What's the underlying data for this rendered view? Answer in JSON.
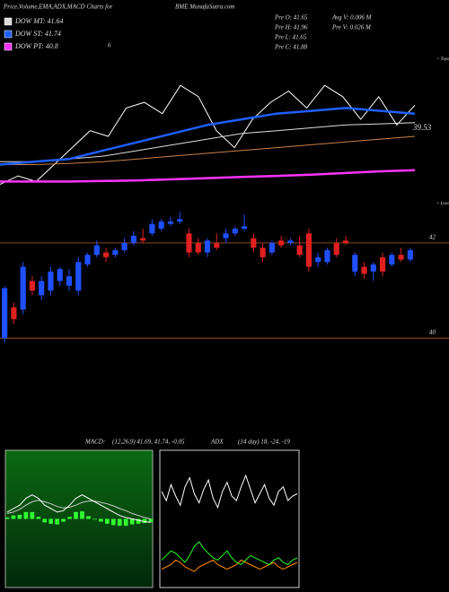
{
  "header": {
    "title": "Price,Volume,EMA,ADX,MACD Charts for",
    "site": "BME MunafaSutra.com",
    "note": "6",
    "info": [
      "Pre  O: 41.65",
      "Pre  H: 41.96",
      "Pre  L: 41.65",
      "Pre  C: 41.88",
      "Avg V: 0.006  M",
      "Pre  V: 0.026  M"
    ]
  },
  "chart_data": [
    {
      "type": "line",
      "ylim": [
        40.4,
        42.7
      ],
      "annotations": [
        "39.53",
        "< Tops"
      ],
      "series": [
        {
          "color": "#ffffff",
          "values": [
            40.55,
            40.7,
            40.6,
            40.9,
            41.2,
            41.5,
            41.4,
            41.9,
            42.0,
            41.8,
            42.3,
            42.1,
            41.5,
            41.2,
            41.7,
            42.0,
            42.2,
            41.9,
            42.3,
            42.1,
            41.7,
            42.1,
            41.6,
            41.95
          ]
        },
        {
          "color": "#c8804a",
          "values": [
            40.9,
            40.9,
            40.92,
            40.95,
            41.0,
            41.05,
            41.1,
            41.15,
            41.2,
            41.25,
            41.3,
            41.35,
            41.4
          ]
        },
        {
          "name": "DOW MT: 41.64",
          "color": "#dddddd",
          "values": [
            40.95,
            40.95,
            41.0,
            41.05,
            41.15,
            41.25,
            41.35,
            41.45,
            41.5,
            41.55,
            41.6,
            41.62,
            41.64
          ]
        },
        {
          "name": "DOW ST: 41.74",
          "color": "#1f5fff",
          "values": [
            40.9,
            40.95,
            41.0,
            41.15,
            41.3,
            41.45,
            41.6,
            41.7,
            41.8,
            41.85,
            41.9,
            41.85,
            41.8
          ]
        },
        {
          "name": "DOW PT: 40.8",
          "color": "#ff33ff",
          "values": [
            40.6,
            40.6,
            40.6,
            40.61,
            40.62,
            40.64,
            40.66,
            40.68,
            40.7,
            40.72,
            40.75,
            40.78,
            40.8
          ]
        }
      ]
    },
    {
      "type": "candlestick",
      "ylim": [
        39.85,
        42.77
      ],
      "yticks": [
        40,
        42
      ],
      "annotations": [
        "< Lows"
      ],
      "up_color": "#1f4fff",
      "down_color": "#e02020",
      "tick_color": "#b0602a",
      "open": [
        40.0,
        40.65,
        40.6,
        41.2,
        40.9,
        41.0,
        41.2,
        41.1,
        41.0,
        41.55,
        41.75,
        41.8,
        41.75,
        41.85,
        42.0,
        42.1,
        42.2,
        42.3,
        42.4,
        42.45,
        42.2,
        42.0,
        41.8,
        42.0,
        42.1,
        42.2,
        42.3,
        42.1,
        41.9,
        41.8,
        42.05,
        42.0,
        41.95,
        42.2,
        41.6,
        41.6,
        42.0,
        42.05,
        41.4,
        41.5,
        41.4,
        41.7,
        41.55,
        41.75,
        41.65
      ],
      "high": [
        41.1,
        40.75,
        41.6,
        41.3,
        41.3,
        41.5,
        41.5,
        41.45,
        41.7,
        41.8,
        42.05,
        41.9,
        41.9,
        42.1,
        42.25,
        42.3,
        42.5,
        42.5,
        42.55,
        42.65,
        42.3,
        42.1,
        42.1,
        42.2,
        42.3,
        42.35,
        42.6,
        42.2,
        42.0,
        42.05,
        42.15,
        42.1,
        42.15,
        42.3,
        41.8,
        41.9,
        42.1,
        42.15,
        41.8,
        41.6,
        41.6,
        41.8,
        41.8,
        41.9,
        41.9
      ],
      "low": [
        39.9,
        40.3,
        40.5,
        40.9,
        40.8,
        40.9,
        41.1,
        41.0,
        40.9,
        41.5,
        41.7,
        41.6,
        41.7,
        41.8,
        41.95,
        42.0,
        42.15,
        42.25,
        42.35,
        42.4,
        41.7,
        41.75,
        41.7,
        41.85,
        42.0,
        42.15,
        42.25,
        41.8,
        41.6,
        41.75,
        41.9,
        41.95,
        41.7,
        41.4,
        41.5,
        41.55,
        41.7,
        41.95,
        41.3,
        41.25,
        41.2,
        41.3,
        41.5,
        41.6,
        41.6
      ],
      "close": [
        41.05,
        40.4,
        41.5,
        41.0,
        41.2,
        41.4,
        41.45,
        41.3,
        41.6,
        41.75,
        41.95,
        41.7,
        41.85,
        42.0,
        42.15,
        42.05,
        42.4,
        42.45,
        42.45,
        42.5,
        41.8,
        41.8,
        42.05,
        41.9,
        42.2,
        42.3,
        42.35,
        41.9,
        41.7,
        42.0,
        41.95,
        42.05,
        41.75,
        41.5,
        41.7,
        41.85,
        41.75,
        42.0,
        41.75,
        41.35,
        41.55,
        41.4,
        41.75,
        41.65,
        41.85
      ]
    },
    {
      "type": "line",
      "title": "MACD:",
      "subtitle": "(12,26,9) 41.69, 41.74, -0.05",
      "ylim": [
        -1,
        1
      ],
      "series": [
        {
          "type": "bar",
          "color": "#33ff33",
          "values": [
            0.02,
            0.05,
            0.06,
            0.1,
            0.1,
            0.03,
            -0.05,
            -0.07,
            -0.08,
            -0.04,
            0.03,
            0.1,
            0.11,
            0.04,
            -0.01,
            -0.04,
            -0.07,
            -0.09,
            -0.1,
            -0.1,
            -0.08,
            -0.07,
            -0.06,
            -0.05
          ]
        },
        {
          "color": "#cccccc",
          "values": [
            0.08,
            0.1,
            0.14,
            0.2,
            0.25,
            0.27,
            0.25,
            0.22,
            0.18,
            0.16,
            0.17,
            0.2,
            0.24,
            0.26,
            0.26,
            0.24,
            0.22,
            0.19,
            0.15,
            0.12,
            0.08,
            0.05,
            0.02,
            0.0
          ]
        },
        {
          "color": "#ffffff",
          "values": [
            0.1,
            0.15,
            0.2,
            0.3,
            0.35,
            0.3,
            0.2,
            0.15,
            0.1,
            0.12,
            0.2,
            0.3,
            0.35,
            0.3,
            0.25,
            0.2,
            0.15,
            0.1,
            0.05,
            0.02,
            0.0,
            -0.02,
            -0.04,
            -0.05
          ]
        }
      ]
    },
    {
      "type": "line",
      "title": "ADX",
      "subtitle": "(14 day) 18, -24, -19",
      "ylim": [
        0,
        60
      ],
      "series": [
        {
          "color": "#ffffff",
          "values": [
            42,
            38,
            45,
            40,
            36,
            44,
            48,
            41,
            37,
            43,
            47,
            39,
            35,
            42,
            46,
            40,
            38,
            44,
            49,
            43,
            37,
            41,
            45,
            39,
            36,
            42,
            44,
            38,
            40,
            41
          ]
        },
        {
          "color": "#ff8800",
          "values": [
            8,
            9,
            10,
            12,
            11,
            9,
            8,
            7,
            9,
            10,
            11,
            12,
            10,
            9,
            8,
            9,
            10,
            12,
            11,
            10,
            9,
            8,
            9,
            10,
            11,
            9,
            8,
            9,
            10,
            11
          ]
        },
        {
          "color": "#22ff22",
          "values": [
            12,
            14,
            16,
            15,
            13,
            11,
            14,
            18,
            20,
            17,
            15,
            13,
            12,
            14,
            16,
            13,
            11,
            10,
            12,
            14,
            13,
            12,
            11,
            10,
            12,
            13,
            11,
            10,
            12,
            13
          ]
        }
      ]
    }
  ]
}
